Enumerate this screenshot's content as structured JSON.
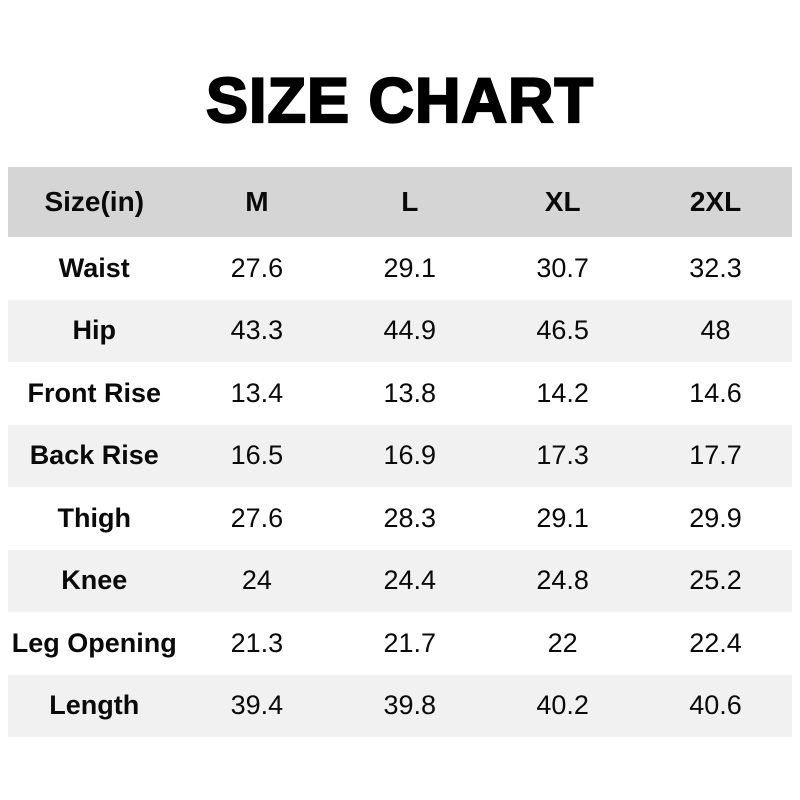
{
  "colors": {
    "header_bg": "#d5d5d5",
    "stripe_bg": "#f1f1f1",
    "text": "#0a0a0a"
  },
  "chart_data": {
    "type": "table",
    "title": "SIZE CHART",
    "units": "inches",
    "columns": [
      "Size(in)",
      "M",
      "L",
      "XL",
      "2XL"
    ],
    "rows": [
      [
        "Waist",
        27.6,
        29.1,
        30.7,
        32.3
      ],
      [
        "Hip",
        43.3,
        44.9,
        46.5,
        48
      ],
      [
        "Front Rise",
        13.4,
        13.8,
        14.2,
        14.6
      ],
      [
        "Back Rise",
        16.5,
        16.9,
        17.3,
        17.7
      ],
      [
        "Thigh",
        27.6,
        28.3,
        29.1,
        29.9
      ],
      [
        "Knee",
        24,
        24.4,
        24.8,
        25.2
      ],
      [
        "Leg Opening",
        21.3,
        21.7,
        22,
        22.4
      ],
      [
        "Length",
        39.4,
        39.8,
        40.2,
        40.6
      ]
    ],
    "layout": {
      "stripe_pattern": "even rows shaded, header dark gray",
      "alignment": "center"
    }
  }
}
